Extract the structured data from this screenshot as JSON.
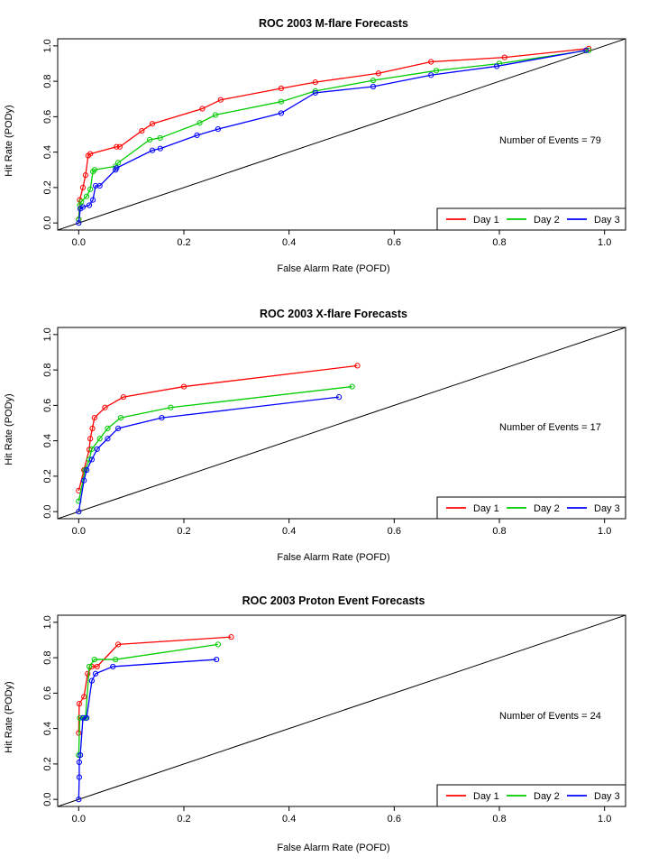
{
  "charts": [
    {
      "title": "ROC  2003 M-flare Forecasts",
      "xlabel": "False Alarm Rate (POFD)",
      "ylabel": "Hit Rate (PODy)",
      "annotation": "Number of Events =  79"
    },
    {
      "title": "ROC  2003 X-flare Forecasts",
      "xlabel": "False Alarm Rate (POFD)",
      "ylabel": "Hit Rate (PODy)",
      "annotation": "Number of Events =  17"
    },
    {
      "title": "ROC  2003 Proton Event Forecasts",
      "xlabel": "False Alarm Rate (POFD)",
      "ylabel": "Hit Rate (PODy)",
      "annotation": "Number of Events = 24"
    }
  ],
  "chart_data": [
    {
      "type": "line",
      "title": "ROC  2003 M-flare Forecasts",
      "xlabel": "False Alarm Rate (POFD)",
      "ylabel": "Hit Rate (PODy)",
      "xlim": [
        0,
        1
      ],
      "ylim": [
        0,
        1
      ],
      "xticks": [
        "0.0",
        "0.2",
        "0.4",
        "0.6",
        "0.8",
        "1.0"
      ],
      "yticks": [
        "0.0",
        "0.2",
        "0.4",
        "0.6",
        "0.8",
        "1.0"
      ],
      "legend_position": "bottom-right",
      "grid": false,
      "diagonal": true,
      "annotation": "Number of Events =  79",
      "series": [
        {
          "name": "Day 1",
          "color": "#ff0000",
          "points": [
            [
              0,
              0.02
            ],
            [
              0.002,
              0.13
            ],
            [
              0.008,
              0.2
            ],
            [
              0.013,
              0.27
            ],
            [
              0.018,
              0.38
            ],
            [
              0.022,
              0.39
            ],
            [
              0.072,
              0.43
            ],
            [
              0.078,
              0.43
            ],
            [
              0.12,
              0.52
            ],
            [
              0.14,
              0.56
            ],
            [
              0.235,
              0.645
            ],
            [
              0.27,
              0.695
            ],
            [
              0.385,
              0.76
            ],
            [
              0.45,
              0.795
            ],
            [
              0.57,
              0.845
            ],
            [
              0.67,
              0.91
            ],
            [
              0.81,
              0.935
            ],
            [
              0.97,
              0.985
            ]
          ]
        },
        {
          "name": "Day 2",
          "color": "#00cc00",
          "points": [
            [
              0,
              0.02
            ],
            [
              0.002,
              0.1
            ],
            [
              0.005,
              0.12
            ],
            [
              0.015,
              0.15
            ],
            [
              0.022,
              0.19
            ],
            [
              0.027,
              0.29
            ],
            [
              0.03,
              0.3
            ],
            [
              0.07,
              0.32
            ],
            [
              0.075,
              0.34
            ],
            [
              0.135,
              0.47
            ],
            [
              0.155,
              0.48
            ],
            [
              0.23,
              0.565
            ],
            [
              0.26,
              0.61
            ],
            [
              0.385,
              0.685
            ],
            [
              0.45,
              0.745
            ],
            [
              0.56,
              0.805
            ],
            [
              0.68,
              0.86
            ],
            [
              0.8,
              0.9
            ],
            [
              0.97,
              0.975
            ]
          ]
        },
        {
          "name": "Day 3",
          "color": "#0000ff",
          "points": [
            [
              0,
              0
            ],
            [
              0.003,
              0.08
            ],
            [
              0.008,
              0.09
            ],
            [
              0.02,
              0.1
            ],
            [
              0.027,
              0.13
            ],
            [
              0.032,
              0.21
            ],
            [
              0.04,
              0.21
            ],
            [
              0.07,
              0.3
            ],
            [
              0.072,
              0.31
            ],
            [
              0.14,
              0.41
            ],
            [
              0.155,
              0.42
            ],
            [
              0.225,
              0.495
            ],
            [
              0.265,
              0.53
            ],
            [
              0.385,
              0.62
            ],
            [
              0.45,
              0.735
            ],
            [
              0.56,
              0.77
            ],
            [
              0.67,
              0.835
            ],
            [
              0.795,
              0.885
            ],
            [
              0.965,
              0.975
            ]
          ]
        }
      ]
    },
    {
      "type": "line",
      "title": "ROC  2003 X-flare Forecasts",
      "xlabel": "False Alarm Rate (POFD)",
      "ylabel": "Hit Rate (PODy)",
      "xlim": [
        0,
        1
      ],
      "ylim": [
        0,
        1
      ],
      "xticks": [
        "0.0",
        "0.2",
        "0.4",
        "0.6",
        "0.8",
        "1.0"
      ],
      "yticks": [
        "0.0",
        "0.2",
        "0.4",
        "0.6",
        "0.8",
        "1.0"
      ],
      "legend_position": "bottom-right",
      "grid": false,
      "diagonal": true,
      "annotation": "Number of Events =  17",
      "series": [
        {
          "name": "Day 1",
          "color": "#ff0000",
          "points": [
            [
              0,
              0.118
            ],
            [
              0.01,
              0.235
            ],
            [
              0.02,
              0.35
            ],
            [
              0.022,
              0.412
            ],
            [
              0.026,
              0.47
            ],
            [
              0.03,
              0.53
            ],
            [
              0.05,
              0.588
            ],
            [
              0.085,
              0.647
            ],
            [
              0.2,
              0.706
            ],
            [
              0.53,
              0.824
            ]
          ]
        },
        {
          "name": "Day 2",
          "color": "#00cc00",
          "points": [
            [
              0,
              0.059
            ],
            [
              0.012,
              0.235
            ],
            [
              0.02,
              0.294
            ],
            [
              0.025,
              0.353
            ],
            [
              0.04,
              0.412
            ],
            [
              0.055,
              0.47
            ],
            [
              0.08,
              0.53
            ],
            [
              0.175,
              0.588
            ],
            [
              0.52,
              0.706
            ]
          ]
        },
        {
          "name": "Day 3",
          "color": "#0000ff",
          "points": [
            [
              0,
              0
            ],
            [
              0.01,
              0.176
            ],
            [
              0.015,
              0.235
            ],
            [
              0.025,
              0.294
            ],
            [
              0.035,
              0.353
            ],
            [
              0.055,
              0.412
            ],
            [
              0.075,
              0.47
            ],
            [
              0.158,
              0.53
            ],
            [
              0.495,
              0.647
            ]
          ]
        }
      ]
    },
    {
      "type": "line",
      "title": "ROC  2003 Proton Event Forecasts",
      "xlabel": "False Alarm Rate (POFD)",
      "ylabel": "Hit Rate (PODy)",
      "xlim": [
        0,
        1
      ],
      "ylim": [
        0,
        1
      ],
      "xticks": [
        "0.0",
        "0.2",
        "0.4",
        "0.6",
        "0.8",
        "1.0"
      ],
      "yticks": [
        "0.0",
        "0.2",
        "0.4",
        "0.6",
        "0.8",
        "1.0"
      ],
      "legend_position": "bottom-right",
      "grid": false,
      "diagonal": true,
      "annotation": "Number of Events = 24",
      "series": [
        {
          "name": "Day 1",
          "color": "#ff0000",
          "points": [
            [
              0,
              0.375
            ],
            [
              0.001,
              0.54
            ],
            [
              0.01,
              0.58
            ],
            [
              0.017,
              0.71
            ],
            [
              0.025,
              0.75
            ],
            [
              0.035,
              0.75
            ],
            [
              0.075,
              0.875
            ],
            [
              0.29,
              0.917
            ]
          ]
        },
        {
          "name": "Day 2",
          "color": "#00cc00",
          "points": [
            [
              0,
              0.25
            ],
            [
              0.002,
              0.46
            ],
            [
              0.01,
              0.46
            ],
            [
              0.013,
              0.46
            ],
            [
              0.02,
              0.75
            ],
            [
              0.03,
              0.79
            ],
            [
              0.07,
              0.79
            ],
            [
              0.265,
              0.875
            ]
          ]
        },
        {
          "name": "Day 3",
          "color": "#0000ff",
          "points": [
            [
              0,
              0
            ],
            [
              0.001,
              0.125
            ],
            [
              0.001,
              0.21
            ],
            [
              0.003,
              0.25
            ],
            [
              0.008,
              0.46
            ],
            [
              0.015,
              0.46
            ],
            [
              0.025,
              0.67
            ],
            [
              0.032,
              0.71
            ],
            [
              0.065,
              0.75
            ],
            [
              0.262,
              0.79
            ]
          ]
        }
      ]
    }
  ]
}
